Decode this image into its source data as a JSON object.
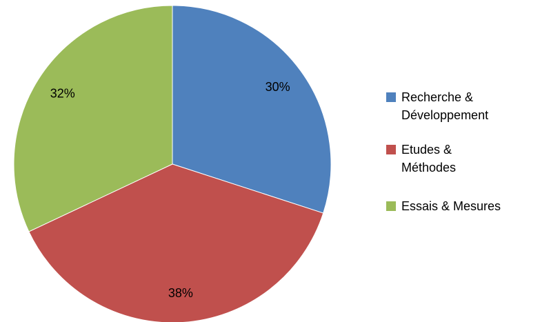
{
  "chart_data": {
    "type": "pie",
    "categories": [
      "Recherche & Développement",
      "Etudes & Méthodes",
      "Essais & Mesures"
    ],
    "values": [
      30,
      38,
      32
    ],
    "value_labels": [
      "30%",
      "38%",
      "32%"
    ],
    "colors": [
      "#4f81bd",
      "#c0504d",
      "#9bbb59"
    ],
    "legend": "right"
  }
}
